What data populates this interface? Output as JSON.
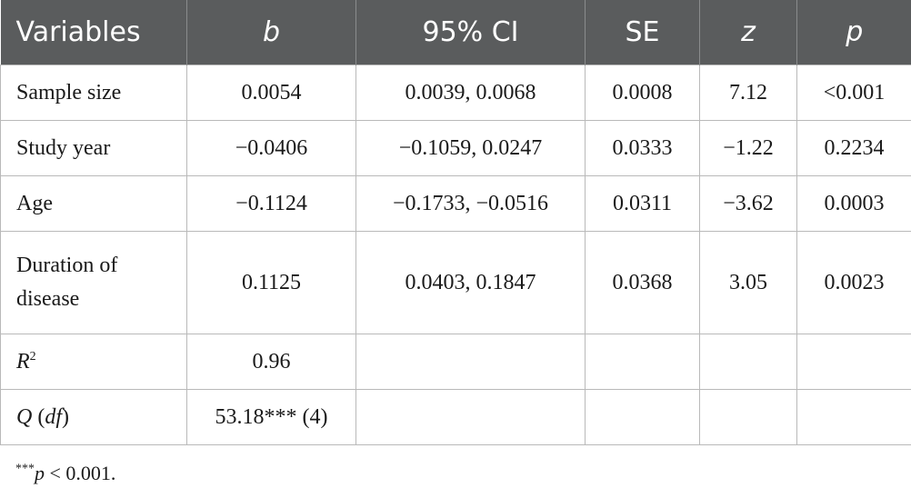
{
  "table": {
    "headers": {
      "variables": "Variables",
      "b": "b",
      "ci": "95% CI",
      "se": "SE",
      "z": "z",
      "p": "p"
    },
    "rows": [
      {
        "variable": "Sample size",
        "b": "0.0054",
        "ci": "0.0039, 0.0068",
        "se": "0.0008",
        "z": "7.12",
        "p": "<0.001"
      },
      {
        "variable": "Study year",
        "b": "−0.0406",
        "ci": "−0.1059, 0.0247",
        "se": "0.0333",
        "z": "−1.22",
        "p": "0.2234"
      },
      {
        "variable": "Age",
        "b": "−0.1124",
        "ci": "−0.1733, −0.0516",
        "se": "0.0311",
        "z": "−3.62",
        "p": "0.0003"
      },
      {
        "variable_line1": "Duration of",
        "variable_line2": "disease",
        "b": "0.1125",
        "ci": "0.0403, 0.1847",
        "se": "0.0368",
        "z": "3.05",
        "p": "0.0023"
      }
    ],
    "r2": {
      "label_letter": "R",
      "label_sup": "2",
      "b": "0.96"
    },
    "q": {
      "label_q": "Q",
      "label_df": "df",
      "b": "53.18*** (4)"
    }
  },
  "footnote": {
    "stars": "***",
    "p": "p",
    "rest": " < 0.001."
  },
  "colors": {
    "header_bg": "#5a5c5d",
    "header_text": "#ffffff",
    "grid": "#b9b9b9"
  }
}
